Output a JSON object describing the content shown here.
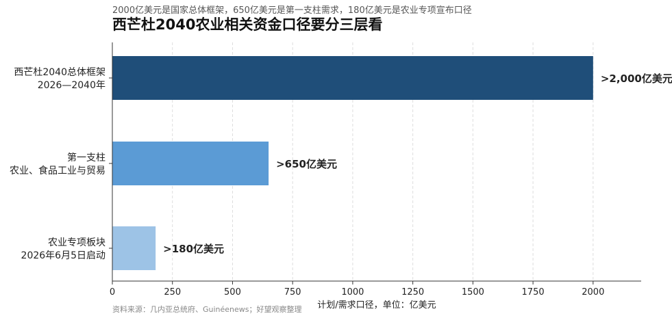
{
  "header": {
    "subtitle": "2000亿美元是国家总体框架，650亿美元是第一支柱需求，180亿美元是农业专项宣布口径",
    "title": "西芒杜2040农业相关资金口径要分三层看"
  },
  "footer": {
    "source": "资料来源：几内亚总统府、Guinéenews；好望观察整理"
  },
  "chart_data": {
    "type": "bar",
    "orientation": "horizontal",
    "categories": [
      [
        "西芒杜2040总体框架",
        "2026—2040年"
      ],
      [
        "第一支柱",
        "农业、食品工业与贸易"
      ],
      [
        "农业专项板块",
        "2026年6月5日启动"
      ]
    ],
    "values": [
      2000,
      650,
      180
    ],
    "value_labels": [
      ">2,000亿美元",
      ">650亿美元",
      ">180亿美元"
    ],
    "colors": [
      "#1f4e79",
      "#5b9bd5",
      "#9dc3e6"
    ],
    "xlabel": "计划/需求口径，单位：亿美元",
    "xlim": [
      0,
      2200
    ],
    "xticks": [
      0,
      250,
      500,
      750,
      1000,
      1250,
      1500,
      1750,
      2000
    ],
    "grid": "vertical-dashed"
  }
}
